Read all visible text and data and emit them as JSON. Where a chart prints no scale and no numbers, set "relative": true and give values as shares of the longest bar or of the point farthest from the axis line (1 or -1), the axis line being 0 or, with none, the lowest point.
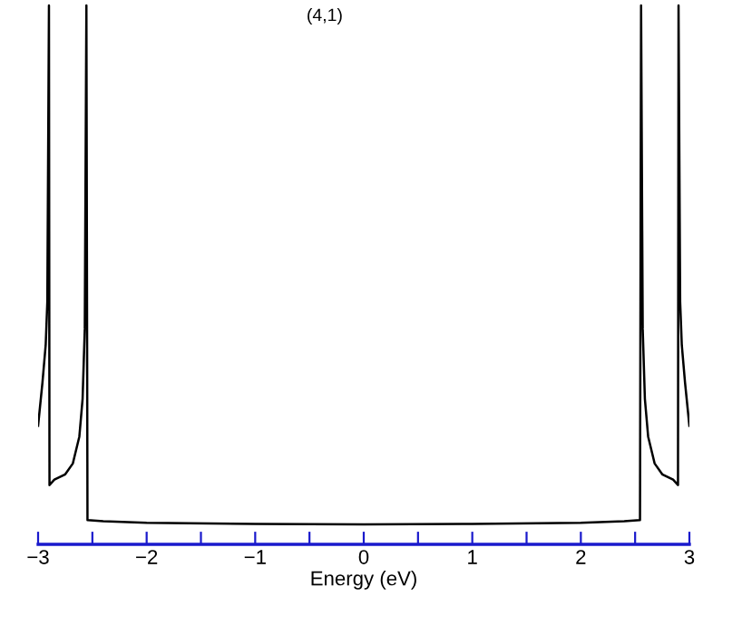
{
  "chart_data": {
    "type": "line",
    "title": "(4,1)",
    "xlabel": "Energy (eV)",
    "relative": true,
    "tick_labels": "x",
    "grid": false,
    "legend": false,
    "marker": "none",
    "line_style": "solid",
    "xlim": [
      -3,
      3
    ],
    "xticks": [
      -3,
      {
        "value": -2.5,
        "label": null
      },
      -2,
      {
        "value": -1.5,
        "label": null
      },
      -1,
      {
        "value": -0.5,
        "label": null
      },
      0,
      {
        "value": 0.5,
        "label": null
      },
      1,
      {
        "value": 1.5,
        "label": null
      },
      2,
      {
        "value": 2.5,
        "label": null
      },
      3
    ],
    "series": [
      {
        "color": "#000000",
        "x": [
          -3.0,
          -2.96,
          -2.93,
          -2.915,
          -2.9,
          -2.895,
          -2.85,
          -2.75,
          -2.68,
          -2.62,
          -2.59,
          -2.57,
          -2.555,
          -2.545,
          -2.4,
          -2.0,
          -1.0,
          0.0,
          1.0,
          2.0,
          2.4,
          2.545,
          2.555,
          2.57,
          2.59,
          2.62,
          2.68,
          2.75,
          2.85,
          2.895,
          2.9,
          2.915,
          2.93,
          2.96,
          3.0
        ],
        "values": [
          0.22,
          0.3,
          0.37,
          0.45,
          1.0,
          0.11,
          0.12,
          0.13,
          0.15,
          0.2,
          0.27,
          0.4,
          1.0,
          0.045,
          0.043,
          0.04,
          0.038,
          0.037,
          0.038,
          0.04,
          0.043,
          0.045,
          1.0,
          0.4,
          0.27,
          0.2,
          0.15,
          0.13,
          0.12,
          0.11,
          1.0,
          0.45,
          0.37,
          0.3,
          0.22
        ]
      }
    ]
  }
}
